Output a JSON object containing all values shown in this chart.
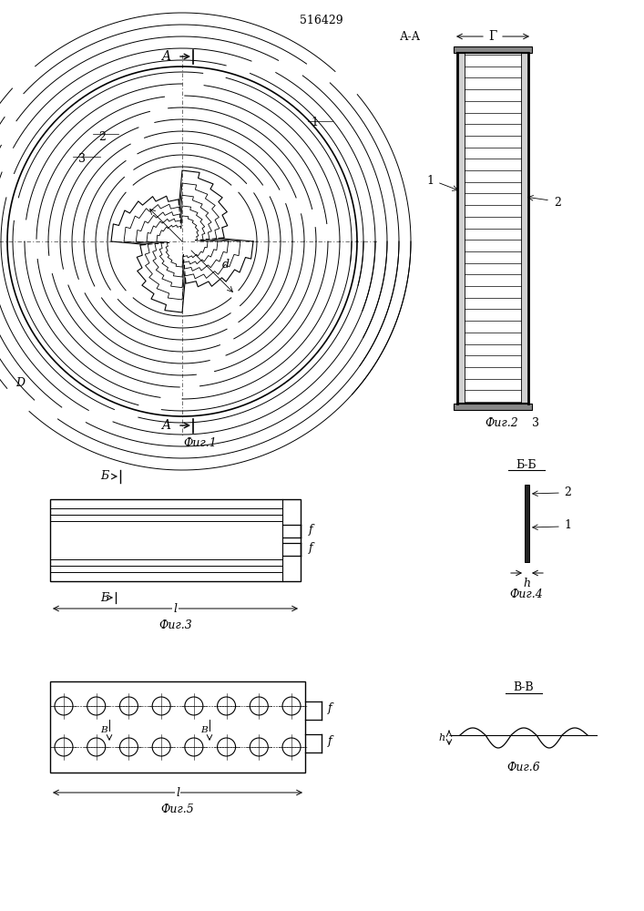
{
  "title": "516429",
  "fig1_label": "Фиг.1",
  "fig2_label": "Фиг.2",
  "fig3_label": "Фиг.3",
  "fig4_label": "Фиг.4",
  "fig5_label": "Фиг.5",
  "fig6_label": "Фиг.6",
  "bg_color": "#ffffff",
  "line_color": "#000000"
}
